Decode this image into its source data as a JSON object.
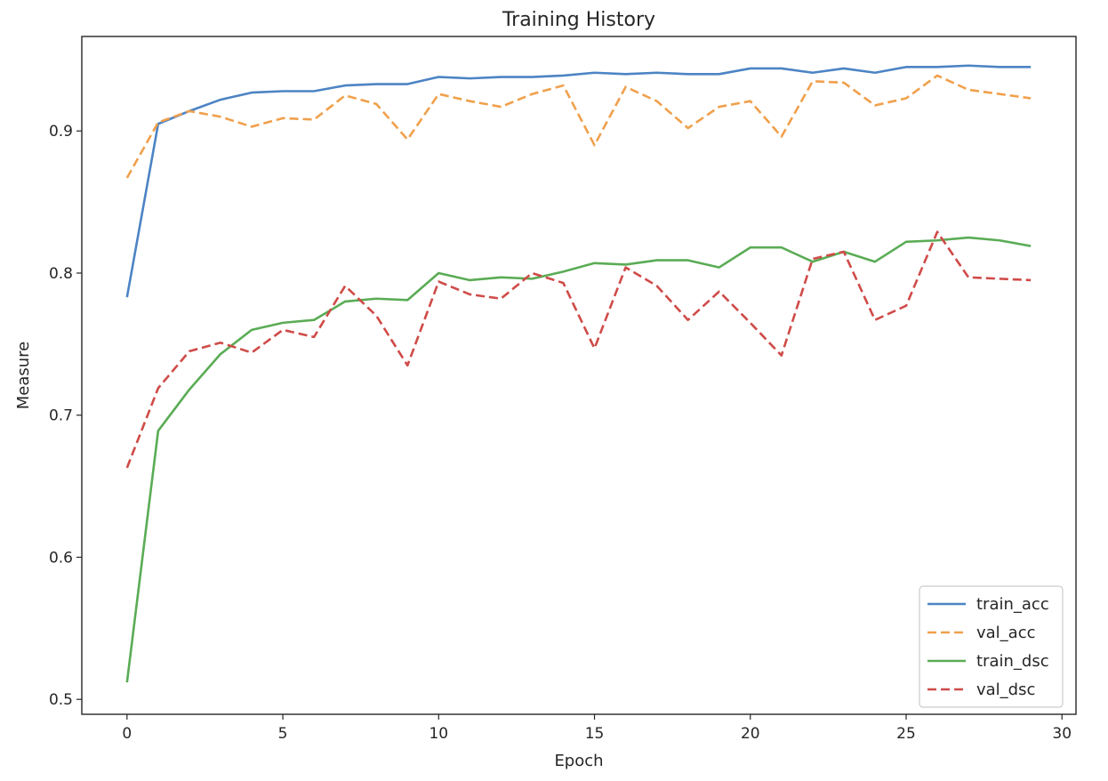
{
  "chart_data": {
    "type": "line",
    "title": "Training History",
    "xlabel": "Epoch",
    "ylabel": "Measure",
    "xlim": [
      -1.45,
      30.45
    ],
    "ylim": [
      0.4895,
      0.9665
    ],
    "xticks": [
      "0",
      "5",
      "10",
      "15",
      "20",
      "25",
      "30"
    ],
    "yticks": [
      "0.5",
      "0.6",
      "0.7",
      "0.8",
      "0.9"
    ],
    "grid": false,
    "legend_position": "bottom-right",
    "x": [
      0,
      1,
      2,
      3,
      4,
      5,
      6,
      7,
      8,
      9,
      10,
      11,
      12,
      13,
      14,
      15,
      16,
      17,
      18,
      19,
      20,
      21,
      22,
      23,
      24,
      25,
      26,
      27,
      28,
      29
    ],
    "series": [
      {
        "name": "train_acc",
        "color": "#4c84c4",
        "dash": "solid",
        "values": [
          0.783,
          0.905,
          0.914,
          0.922,
          0.927,
          0.928,
          0.928,
          0.932,
          0.933,
          0.933,
          0.938,
          0.937,
          0.938,
          0.938,
          0.939,
          0.941,
          0.94,
          0.941,
          0.94,
          0.94,
          0.944,
          0.944,
          0.941,
          0.944,
          0.941,
          0.945,
          0.945,
          0.946,
          0.945,
          0.945
        ]
      },
      {
        "name": "val_acc",
        "color": "#f0a04c",
        "dash": "dashed",
        "values": [
          0.867,
          0.906,
          0.914,
          0.91,
          0.903,
          0.909,
          0.908,
          0.925,
          0.919,
          0.894,
          0.926,
          0.921,
          0.917,
          0.926,
          0.932,
          0.89,
          0.931,
          0.921,
          0.902,
          0.917,
          0.921,
          0.896,
          0.935,
          0.934,
          0.918,
          0.923,
          0.939,
          0.929,
          0.926,
          0.923
        ]
      },
      {
        "name": "train_dsc",
        "color": "#5aac55",
        "dash": "solid",
        "values": [
          0.512,
          0.689,
          0.718,
          0.743,
          0.76,
          0.765,
          0.767,
          0.78,
          0.782,
          0.781,
          0.8,
          0.795,
          0.797,
          0.796,
          0.801,
          0.807,
          0.806,
          0.809,
          0.809,
          0.804,
          0.818,
          0.818,
          0.808,
          0.815,
          0.808,
          0.822,
          0.823,
          0.825,
          0.823,
          0.819
        ]
      },
      {
        "name": "val_dsc",
        "color": "#cf4b48",
        "dash": "dashed",
        "values": [
          0.663,
          0.719,
          0.745,
          0.751,
          0.744,
          0.76,
          0.755,
          0.791,
          0.77,
          0.735,
          0.794,
          0.785,
          0.782,
          0.8,
          0.793,
          0.747,
          0.804,
          0.791,
          0.767,
          0.787,
          0.765,
          0.742,
          0.81,
          0.815,
          0.767,
          0.777,
          0.829,
          0.797,
          0.796,
          0.795
        ]
      }
    ]
  }
}
